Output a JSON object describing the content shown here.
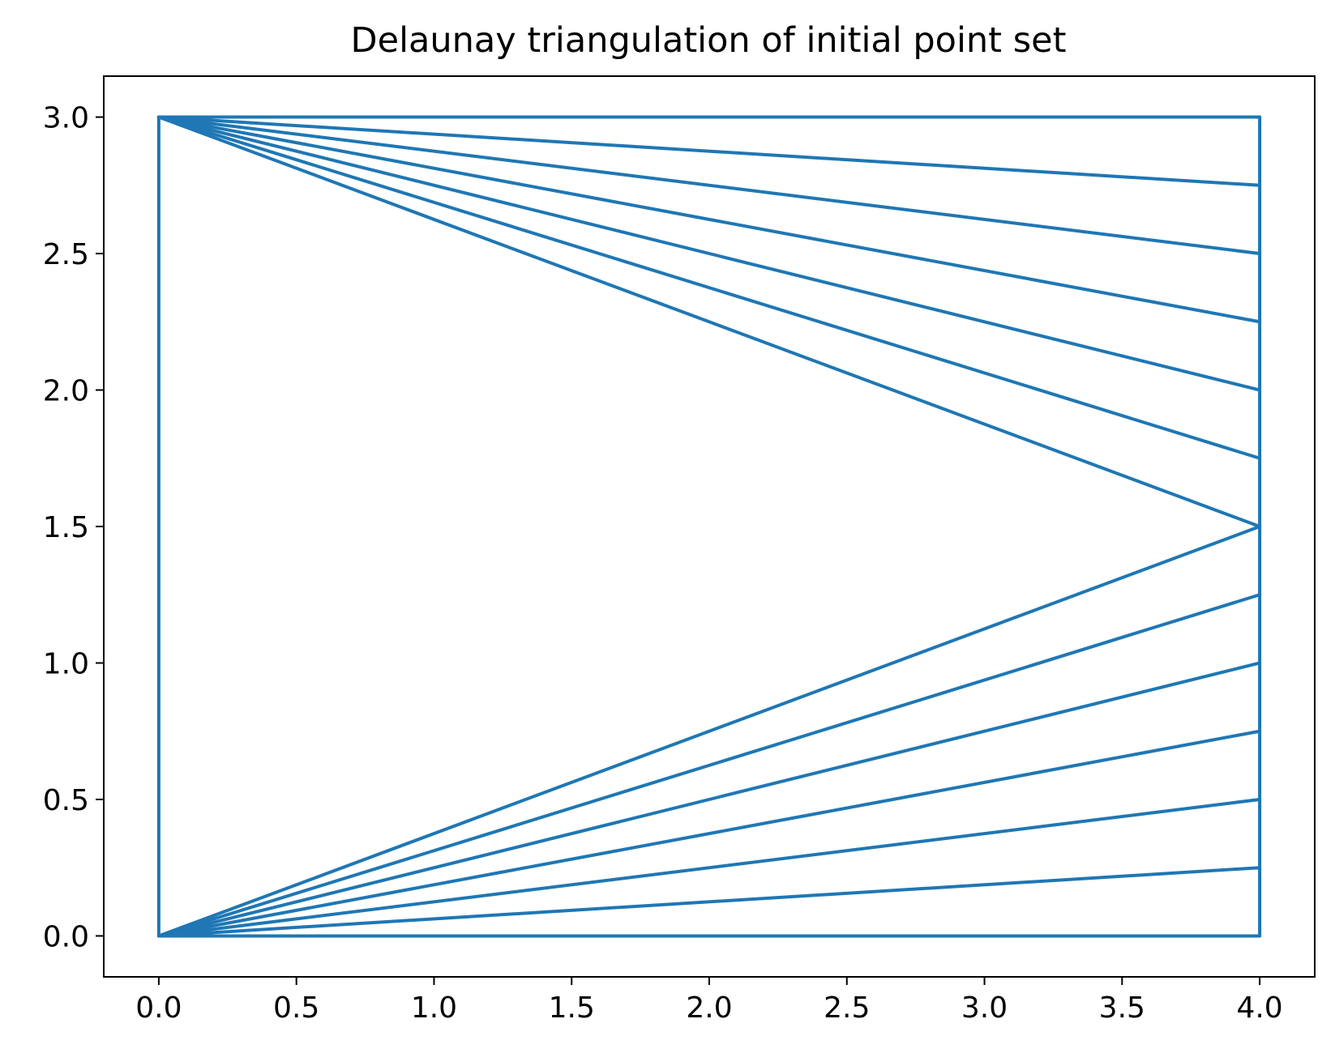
{
  "chart_data": {
    "type": "line",
    "title": "Delaunay triangulation of initial point set",
    "xlabel": "",
    "ylabel": "",
    "xlim": [
      -0.2,
      4.2
    ],
    "ylim": [
      -0.15,
      3.15
    ],
    "x_ticks": [
      "0.0",
      "0.5",
      "1.0",
      "1.5",
      "2.0",
      "2.5",
      "3.0",
      "3.5",
      "4.0"
    ],
    "y_ticks": [
      "0.0",
      "0.5",
      "1.0",
      "1.5",
      "2.0",
      "2.5",
      "3.0"
    ],
    "grid": false,
    "line_color": "#1f77b4",
    "points": [
      [
        0,
        0
      ],
      [
        0,
        3
      ],
      [
        4,
        0
      ],
      [
        4,
        0.25
      ],
      [
        4,
        0.5
      ],
      [
        4,
        0.75
      ],
      [
        4,
        1.0
      ],
      [
        4,
        1.25
      ],
      [
        4,
        1.5
      ],
      [
        4,
        1.75
      ],
      [
        4,
        2.0
      ],
      [
        4,
        2.25
      ],
      [
        4,
        2.5
      ],
      [
        4,
        2.75
      ],
      [
        4,
        3.0
      ]
    ],
    "edges": [
      [
        [
          0,
          0
        ],
        [
          0,
          3
        ]
      ],
      [
        [
          0,
          3
        ],
        [
          4,
          3
        ]
      ],
      [
        [
          0,
          0
        ],
        [
          4,
          0
        ]
      ],
      [
        [
          4,
          0
        ],
        [
          4,
          3
        ]
      ],
      [
        [
          0,
          3
        ],
        [
          4,
          2.75
        ]
      ],
      [
        [
          0,
          3
        ],
        [
          4,
          2.5
        ]
      ],
      [
        [
          0,
          3
        ],
        [
          4,
          2.25
        ]
      ],
      [
        [
          0,
          3
        ],
        [
          4,
          2.0
        ]
      ],
      [
        [
          0,
          3
        ],
        [
          4,
          1.75
        ]
      ],
      [
        [
          0,
          3
        ],
        [
          4,
          1.5
        ]
      ],
      [
        [
          0,
          0
        ],
        [
          4,
          1.5
        ]
      ],
      [
        [
          0,
          0
        ],
        [
          4,
          1.25
        ]
      ],
      [
        [
          0,
          0
        ],
        [
          4,
          1.0
        ]
      ],
      [
        [
          0,
          0
        ],
        [
          4,
          0.75
        ]
      ],
      [
        [
          0,
          0
        ],
        [
          4,
          0.5
        ]
      ],
      [
        [
          0,
          0
        ],
        [
          4,
          0.25
        ]
      ]
    ]
  }
}
